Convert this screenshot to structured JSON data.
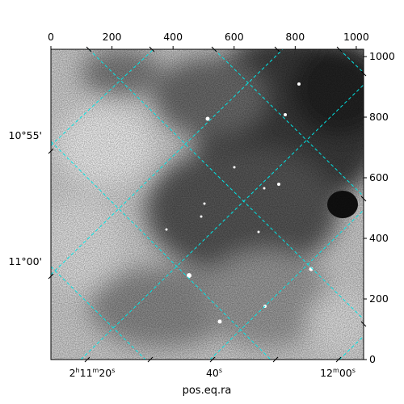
{
  "chart_data": {
    "type": "heatmap",
    "title": "",
    "xlabel": "pos.eq.ra",
    "ylabel": "",
    "image_xlim": [
      0,
      1024
    ],
    "image_ylim": [
      0,
      1024
    ],
    "pixel_ticks": {
      "top": [
        0,
        200,
        400,
        600,
        800,
        1000
      ],
      "right": [
        0,
        200,
        400,
        600,
        800,
        1000
      ]
    },
    "ra_ticks": [
      {
        "label": "2h11m20s",
        "unit_sup": [
          "h",
          "m",
          "s"
        ]
      },
      {
        "label": "40s"
      },
      {
        "label": "12m00s"
      }
    ],
    "dec_ticks": [
      {
        "label": "10°55'"
      },
      {
        "label": "11°00'"
      }
    ],
    "grid": true,
    "grid_color": "#00e5e5",
    "colormap": "grayscale (inverted, dark = bright sky)"
  },
  "labels": {
    "ra_tick_1_main": "2",
    "ra_tick_1_h": "h",
    "ra_tick_1_m_val": "11",
    "ra_tick_1_m": "m",
    "ra_tick_1_s_val": "20",
    "ra_tick_1_s": "s",
    "ra_tick_2_val": "40",
    "ra_tick_2_s": "s",
    "ra_tick_3_m_val": "12",
    "ra_tick_3_m": "m",
    "ra_tick_3_s_val": "00",
    "ra_tick_3_s": "s"
  }
}
